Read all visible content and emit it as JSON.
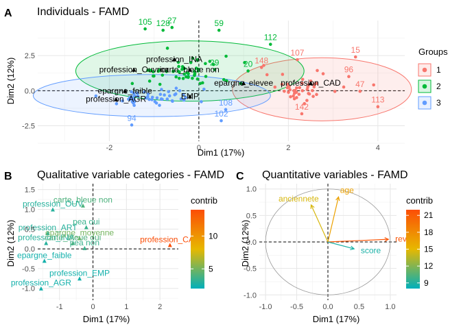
{
  "panels": {
    "A": {
      "tag": "A",
      "title": "Individuals - FAMD",
      "xlabel": "Dim1 (17%)",
      "ylabel": "Dim2 (12%)",
      "legend_title": "Groups",
      "legend_items": [
        {
          "label": "1",
          "color": "#F8766D"
        },
        {
          "label": "2",
          "color": "#00BA38"
        },
        {
          "label": "3",
          "color": "#619CFF"
        }
      ]
    },
    "B": {
      "tag": "B",
      "title": "Qualitative variable categories - FAMD",
      "xlabel": "Dim1 (17%)",
      "ylabel": "Dim2 (12%)",
      "legend_title": "contrib",
      "legend_ticks": [
        "10",
        "5"
      ]
    },
    "C": {
      "tag": "C",
      "title": "Quantitative variables - FAMD",
      "xlabel": "Dim1 (17%)",
      "ylabel": "Dim2 (12%)",
      "legend_title": "contrib",
      "legend_ticks": [
        "21",
        "18",
        "15",
        "12",
        "9"
      ]
    }
  },
  "chart_data": [
    {
      "type": "scatter",
      "title": "Individuals - FAMD",
      "xlabel": "Dim1 (17%)",
      "ylabel": "Dim2 (12%)",
      "xlim": [
        -3.6,
        4.6
      ],
      "ylim": [
        -3.6,
        5.0
      ],
      "xticks": [
        "-2",
        "0",
        "2",
        "4"
      ],
      "yticks": [
        "2.5",
        "0.0",
        "-2.5"
      ],
      "grid": true,
      "legend": "right",
      "ellipses": [
        {
          "group": "1",
          "cx": 2.75,
          "cy": 0.1,
          "rx": 2.0,
          "ry": 2.25,
          "color": "#F8766D"
        },
        {
          "group": "2",
          "cx": -0.2,
          "cy": 1.4,
          "rx": 2.55,
          "ry": 2.15,
          "color": "#00BA38"
        },
        {
          "group": "3",
          "cx": -1.05,
          "cy": -0.35,
          "rx": 2.65,
          "ry": 1.5,
          "color": "#619CFF"
        }
      ],
      "labeled_points": [
        {
          "label": "15",
          "x": 3.5,
          "y": 2.7,
          "group": "1"
        },
        {
          "label": "96",
          "x": 3.35,
          "y": 1.3,
          "group": "1"
        },
        {
          "label": "47",
          "x": 3.6,
          "y": 0.25,
          "group": "1"
        },
        {
          "label": "113",
          "x": 4.0,
          "y": -0.85,
          "group": "1"
        },
        {
          "label": "107",
          "x": 2.2,
          "y": 2.5,
          "group": "1"
        },
        {
          "label": "148",
          "x": 1.4,
          "y": 1.95,
          "group": "1"
        },
        {
          "label": "142",
          "x": 2.3,
          "y": -1.35,
          "group": "1"
        },
        {
          "label": "112",
          "x": 1.6,
          "y": 3.6,
          "group": "2"
        },
        {
          "label": "105",
          "x": -1.2,
          "y": 4.7,
          "group": "2"
        },
        {
          "label": "128",
          "x": -0.8,
          "y": 4.6,
          "group": "2"
        },
        {
          "label": "27",
          "x": -0.6,
          "y": 4.8,
          "group": "2"
        },
        {
          "label": "59",
          "x": 0.45,
          "y": 4.6,
          "group": "2"
        },
        {
          "label": "29",
          "x": 0.35,
          "y": 1.8,
          "group": "2"
        },
        {
          "label": "20",
          "x": 1.1,
          "y": 1.7,
          "group": "2"
        },
        {
          "label": "94",
          "x": -1.5,
          "y": -2.15,
          "group": "3"
        },
        {
          "label": "102",
          "x": 0.5,
          "y": -1.85,
          "group": "3"
        },
        {
          "label": "108",
          "x": 0.6,
          "y": -1.05,
          "group": "3"
        }
      ],
      "group_clouds": [
        {
          "group": "1",
          "cx": 2.3,
          "cy": 0.2,
          "sx": 0.75,
          "sy": 1.0,
          "n": 45
        },
        {
          "group": "2",
          "cx": -0.4,
          "cy": 1.3,
          "sx": 1.05,
          "sy": 0.95,
          "n": 55
        },
        {
          "group": "3",
          "cx": -1.0,
          "cy": -0.5,
          "sx": 1.05,
          "sy": 0.6,
          "n": 50
        }
      ],
      "category_labels": [
        {
          "label": "profession_INA",
          "x": -0.55,
          "y": 2.25
        },
        {
          "label": "profession_Ouvrier",
          "x": -1.45,
          "y": 1.5
        },
        {
          "label": "carte_bleue non",
          "x": -0.2,
          "y": 1.5
        },
        {
          "label": "epargne_faible",
          "x": -1.65,
          "y": 0.0
        },
        {
          "label": "profession_AGR",
          "x": -1.85,
          "y": -0.6
        },
        {
          "label": "epargne_elevee",
          "x": 1.0,
          "y": 0.55
        },
        {
          "label": "profession_CAD",
          "x": 2.5,
          "y": 0.55
        },
        {
          "label": "EMP",
          "x": -0.2,
          "y": -0.4
        }
      ]
    },
    {
      "type": "scatter",
      "title": "Qualitative variable categories - FAMD",
      "xlabel": "Dim1 (17%)",
      "ylabel": "Dim2 (12%)",
      "xlim": [
        -1.65,
        2.55
      ],
      "ylim": [
        -1.3,
        1.65
      ],
      "xticks": [
        "-1",
        "0",
        "1",
        "2"
      ],
      "yticks": [
        "1.5",
        "1.0",
        "0.5",
        "0.0",
        "-0.5",
        "-1.0"
      ],
      "grid": true,
      "legend": "right",
      "colorbar": {
        "min": 2,
        "max": 14
      },
      "points": [
        {
          "label": "carte_bleue non",
          "x": -0.3,
          "y": 1.1,
          "contrib": 4.0
        },
        {
          "label": "profession_OUV",
          "x": -1.2,
          "y": 1.0,
          "contrib": 3.0
        },
        {
          "label": "profession_ART",
          "x": -1.35,
          "y": 0.4,
          "contrib": 3.0
        },
        {
          "label": "profession_INA",
          "x": -1.4,
          "y": 0.15,
          "contrib": 3.0
        },
        {
          "label": "pea oui",
          "x": -0.2,
          "y": 0.55,
          "contrib": 3.5
        },
        {
          "label": "epargne_moyenne",
          "x": -0.4,
          "y": 0.27,
          "contrib": 5.0
        },
        {
          "label": "carte_bleue oui",
          "x": -0.6,
          "y": 0.15,
          "contrib": 4.0
        },
        {
          "label": "pea non",
          "x": -0.25,
          "y": 0.02,
          "contrib": 3.5
        },
        {
          "label": "profession_CAD",
          "x": 2.3,
          "y": 0.1,
          "contrib": 14.0
        },
        {
          "label": "epargne_faible",
          "x": -1.45,
          "y": -0.3,
          "contrib": 2.5
        },
        {
          "label": "profession_EMP",
          "x": -0.4,
          "y": -0.75,
          "contrib": 2.5
        },
        {
          "label": "profession_AGR",
          "x": -1.55,
          "y": -1.0,
          "contrib": 2.5
        }
      ]
    },
    {
      "type": "scatter",
      "title": "Quantitative variables - FAMD",
      "xlabel": "Dim1 (17%)",
      "ylabel": "Dim2 (12%)",
      "xlim": [
        -1.1,
        1.1
      ],
      "ylim": [
        -1.1,
        1.1
      ],
      "xticks": [
        "-1.0",
        "-0.5",
        "0.0",
        "0.5",
        "1.0"
      ],
      "yticks": [
        "1.0",
        "0.5",
        "0.0",
        "-0.5",
        "-1.0"
      ],
      "grid": true,
      "legend": "right",
      "colorbar": {
        "min": 8,
        "max": 22
      },
      "vectors": [
        {
          "label": "age",
          "x": 0.17,
          "y": 0.85,
          "contrib": 16.5
        },
        {
          "label": "anciennete",
          "x": -0.27,
          "y": 0.7,
          "contrib": 14.5
        },
        {
          "label": "revenu",
          "x": 0.97,
          "y": 0.05,
          "contrib": 21.5
        },
        {
          "label": "score",
          "x": 0.42,
          "y": -0.13,
          "contrib": 8.8
        }
      ]
    }
  ]
}
